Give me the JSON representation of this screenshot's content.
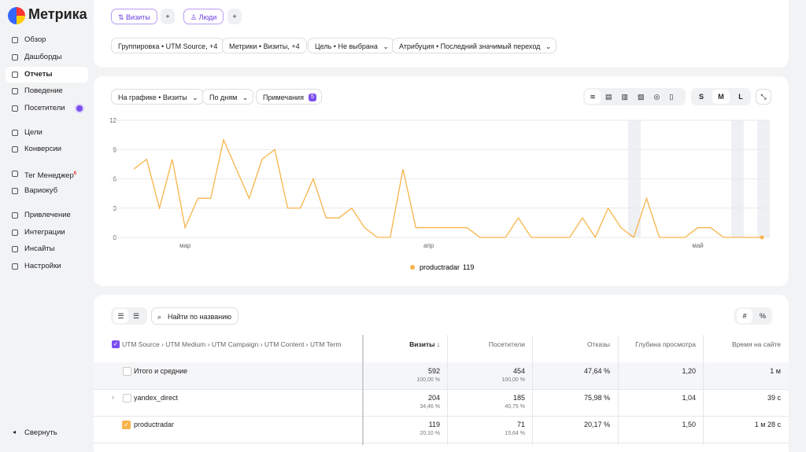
{
  "sidebar": {
    "logo": "Метрика",
    "items": [
      "Обзор",
      "Дашборды",
      "Отчеты",
      "Поведение",
      "Посетители",
      "Цели",
      "Конверсии",
      "Тег Менеджер",
      "Вариокуб",
      "Привлечение",
      "Интеграции",
      "Инсайты",
      "Настройки"
    ],
    "badge": 6,
    "collapse": "Свернуть"
  },
  "toolbar": {
    "segments": [
      "Визиты",
      "Люди"
    ],
    "add": "+",
    "filters": [
      "Группировка • UTM Source, +4",
      "Метрики • Визиты, +4",
      "Цель • Не выбрана",
      "Атрибуция • Последний значимый переход"
    ]
  },
  "chart_controls": {
    "metric": "На графике • Визиты",
    "period": "По дням",
    "notes": "Примечания",
    "notes_count": 5,
    "sizes": [
      "S",
      "M",
      "L"
    ]
  },
  "chart_data": {
    "type": "line",
    "categories": [
      null,
      null,
      null,
      null,
      "мар",
      null,
      null,
      null,
      null,
      null,
      null,
      null,
      null,
      null,
      null,
      null,
      null,
      null,
      null,
      null,
      null,
      null,
      null,
      "апр",
      null,
      null,
      null,
      null,
      null,
      null,
      null,
      null,
      null,
      null,
      null,
      null,
      null,
      null,
      null,
      null,
      null,
      null,
      null,
      null,
      "май",
      null,
      null,
      null,
      null,
      null
    ],
    "series": [
      {
        "name": "productradar",
        "color": "#f7b44a",
        "total": 119,
        "values": [
          7,
          8,
          3,
          8,
          1,
          4,
          4,
          10,
          7,
          4,
          8,
          9,
          3,
          3,
          6,
          2,
          2,
          3,
          1,
          0,
          0,
          7,
          1,
          1,
          1,
          1,
          1,
          0,
          0,
          0,
          2,
          0,
          0,
          0,
          0,
          2,
          0,
          3,
          1,
          0,
          4,
          0,
          0,
          0,
          1,
          1,
          0,
          0,
          0,
          0
        ]
      }
    ],
    "ylim": [
      0,
      12
    ],
    "yticks": [
      0,
      3,
      6,
      9,
      12
    ],
    "grid": true
  },
  "table": {
    "search": "Найти по названию",
    "toggles": [
      "#",
      "%"
    ],
    "header": [
      "UTM Source › UTM Medium › UTM Campaign › UTM Content › UTM Term",
      "Визиты ↓",
      "Посетители",
      "Отказы",
      "Глубина просмотра",
      "Время на сайте"
    ],
    "rows": [
      [
        "Итого и средние",
        "592",
        "100,00 %",
        "454",
        "100,00 %",
        "47,64 %",
        "1,20",
        "1 м"
      ],
      [
        "yandex_direct",
        "204",
        "34,46 %",
        "185",
        "40,75 %",
        "75,98 %",
        "1,04",
        "39 с"
      ],
      [
        "productradar",
        "119",
        "20,10 %",
        "71",
        "15,64 %",
        "20,17 %",
        "1,50",
        "1 м 28 с"
      ]
    ]
  }
}
